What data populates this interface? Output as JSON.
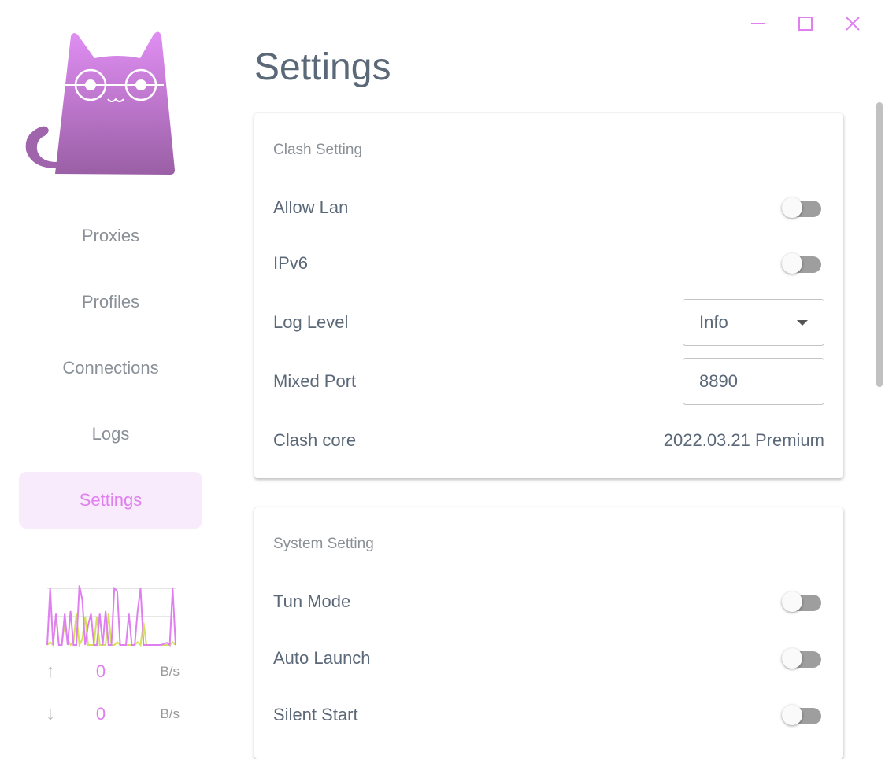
{
  "window": {
    "controls": [
      "minimize",
      "maximize",
      "close"
    ],
    "accent": "#e07ff0"
  },
  "sidebar": {
    "items": [
      {
        "label": "Proxies"
      },
      {
        "label": "Profiles"
      },
      {
        "label": "Connections"
      },
      {
        "label": "Logs"
      },
      {
        "label": "Settings",
        "active": true
      }
    ]
  },
  "traffic": {
    "upload": {
      "value": "0",
      "unit": "B/s"
    },
    "download": {
      "value": "0",
      "unit": "B/s"
    },
    "upload_color": "#e07ff0",
    "download_color": "#d4e157",
    "upload_series": [
      0,
      100,
      0,
      55,
      0,
      0,
      55,
      0,
      60,
      0,
      0,
      105,
      80,
      0,
      35,
      55,
      0,
      0,
      55,
      0,
      60,
      0,
      0,
      100,
      95,
      0,
      0,
      0,
      55,
      0,
      0,
      60,
      100,
      0,
      0,
      0,
      0,
      0,
      0,
      0,
      2,
      4,
      0,
      100,
      0
    ],
    "download_series": [
      0,
      5,
      0,
      50,
      0,
      0,
      40,
      10,
      0,
      5,
      55,
      0,
      10,
      50,
      0,
      0,
      0,
      50,
      0,
      0,
      0,
      55,
      0,
      0,
      5,
      0,
      0,
      0,
      0,
      0,
      0,
      5,
      0,
      40,
      0,
      0,
      0,
      0,
      0,
      0,
      0,
      0,
      0,
      5,
      0
    ]
  },
  "page": {
    "title": "Settings"
  },
  "clash": {
    "title": "Clash Setting",
    "allow_lan": {
      "label": "Allow Lan",
      "on": false
    },
    "ipv6": {
      "label": "IPv6",
      "on": false
    },
    "log_level": {
      "label": "Log Level",
      "value": "Info"
    },
    "mixed_port": {
      "label": "Mixed Port",
      "value": "8890"
    },
    "core": {
      "label": "Clash core",
      "value": "2022.03.21 Premium"
    }
  },
  "system": {
    "title": "System Setting",
    "tun": {
      "label": "Tun Mode",
      "on": false
    },
    "auto_launch": {
      "label": "Auto Launch",
      "on": false
    },
    "silent": {
      "label": "Silent Start",
      "on": false
    }
  }
}
